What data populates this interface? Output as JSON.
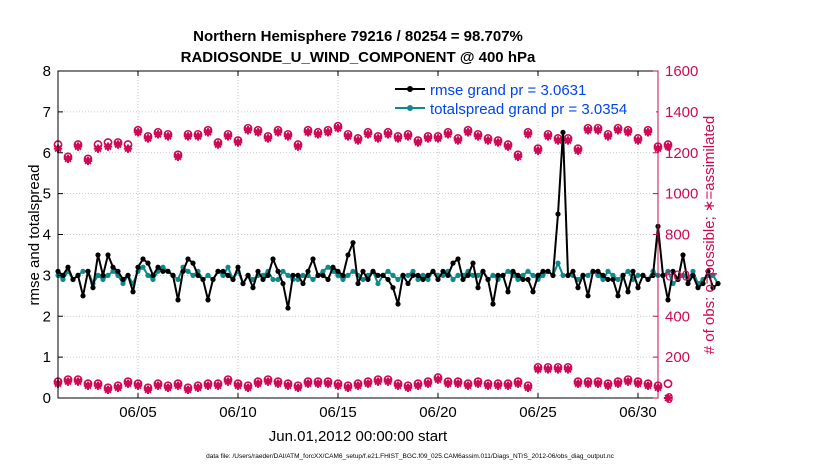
{
  "chart_data": {
    "type": "line",
    "title_line1": "Northern Hemisphere 79216 / 80254 = 98.707%",
    "title_line2": "RADIOSONDE_U_WIND_COMPONENT @ 400 hPa",
    "xlabel": "Jun.01,2012 00:00:00 start",
    "ylabel_left": "rmse and totalspread",
    "ylabel_right": "# of obs: o=possible; ∗=assimilated",
    "footer": "data file: /Users/raeder/DAI/ATM_forcXX/CAM6_setup/f.e21.FHIST_BGC.f09_025.CAM6assim.011/Diags_NTrS_2012-06/obs_diag_output.nc",
    "x_range_days": [
      1.0,
      31.0
    ],
    "x_ticks": [
      {
        "day": 5,
        "label": "06/05"
      },
      {
        "day": 10,
        "label": "06/10"
      },
      {
        "day": 15,
        "label": "06/15"
      },
      {
        "day": 20,
        "label": "06/20"
      },
      {
        "day": 25,
        "label": "06/25"
      },
      {
        "day": 30,
        "label": "06/30"
      }
    ],
    "y_left": {
      "min": 0,
      "max": 8,
      "ticks": [
        "0",
        "1",
        "2",
        "3",
        "4",
        "5",
        "6",
        "7",
        "8"
      ]
    },
    "y_right": {
      "min": 0,
      "max": 1600,
      "ticks": [
        "0",
        "200",
        "400",
        "600",
        "800",
        "1000",
        "1200",
        "1400",
        "1600"
      ]
    },
    "grid": true,
    "legend_position": "top-right",
    "colors": {
      "rmse": "#000000",
      "spread": "#0f8a8a",
      "obs": "#cc0a55",
      "legend_text": "#0044ee"
    },
    "series": [
      {
        "name": "rmse grand pr = 3.0631",
        "axis": "left",
        "start_day": 1.0,
        "step_days": 0.25,
        "values": [
          3.1,
          3.0,
          3.2,
          2.9,
          3.0,
          2.5,
          3.1,
          2.7,
          3.5,
          3.0,
          3.5,
          3.2,
          3.1,
          2.9,
          3.0,
          2.6,
          3.2,
          3.4,
          3.3,
          3.0,
          3.2,
          3.1,
          3.1,
          3.0,
          2.4,
          3.1,
          3.4,
          3.3,
          3.0,
          2.9,
          2.4,
          2.9,
          3.1,
          3.1,
          3.0,
          2.9,
          3.2,
          2.8,
          3.0,
          2.7,
          3.1,
          2.9,
          3.0,
          3.4,
          3.1,
          2.8,
          2.2,
          3.0,
          3.0,
          2.8,
          3.1,
          3.4,
          3.0,
          3.0,
          2.9,
          3.2,
          3.1,
          3.0,
          3.5,
          3.8,
          2.8,
          3.1,
          2.9,
          3.1,
          3.0,
          3.0,
          2.9,
          2.7,
          2.3,
          3.0,
          2.8,
          3.0,
          3.0,
          2.9,
          3.0,
          3.1,
          2.9,
          3.1,
          3.0,
          3.3,
          3.4,
          2.9,
          3.0,
          3.3,
          2.7,
          3.1,
          2.9,
          2.3,
          3.0,
          3.0,
          2.6,
          3.1,
          3.0,
          2.9,
          2.9,
          2.6,
          3.0,
          3.1,
          3.1,
          3.0,
          4.5,
          6.5,
          3.0,
          3.1,
          2.7,
          3.0,
          2.5,
          3.1,
          3.1,
          3.0,
          2.9,
          2.9,
          2.5,
          3.0,
          2.6,
          3.1,
          2.7,
          3.0,
          2.9,
          3.0,
          4.2,
          3.0,
          2.4,
          3.1,
          2.9,
          3.5,
          2.8,
          3.0,
          2.7,
          2.8,
          3.1,
          2.7,
          2.8
        ]
      },
      {
        "name": "totalspread grand pr = 3.0354",
        "axis": "left",
        "start_day": 1.0,
        "step_days": 0.25,
        "values": [
          3.0,
          2.9,
          3.1,
          2.9,
          3.0,
          3.1,
          3.1,
          2.8,
          3.0,
          2.9,
          3.0,
          3.1,
          3.0,
          2.8,
          3.0,
          2.8,
          3.1,
          3.2,
          3.0,
          2.9,
          3.1,
          3.2,
          3.1,
          3.0,
          2.9,
          3.2,
          3.1,
          3.0,
          3.1,
          2.9,
          3.0,
          2.9,
          3.1,
          3.0,
          3.2,
          2.9,
          3.1,
          2.8,
          3.0,
          2.9,
          3.0,
          3.0,
          3.1,
          2.9,
          2.9,
          3.1,
          3.0,
          2.9,
          2.9,
          3.0,
          3.0,
          2.9,
          3.0,
          3.1,
          3.2,
          3.1,
          3.0,
          2.9,
          3.0,
          3.1,
          3.0,
          2.9,
          3.0,
          3.1,
          2.8,
          3.0,
          3.1,
          3.0,
          2.9,
          3.0,
          3.0,
          3.1,
          2.9,
          3.0,
          2.9,
          3.1,
          3.0,
          3.0,
          3.1,
          2.9,
          3.0,
          3.0,
          3.1,
          3.0,
          3.0,
          3.1,
          2.9,
          3.0,
          2.9,
          3.0,
          3.1,
          3.0,
          2.9,
          3.0,
          3.1,
          3.0,
          2.9,
          3.0,
          3.1,
          3.0,
          3.3,
          3.0,
          3.0,
          3.0,
          2.9,
          3.0,
          3.0,
          3.1,
          3.0,
          2.9,
          3.1,
          3.0,
          2.9,
          3.0,
          3.1,
          2.9,
          3.0,
          3.0,
          2.9,
          3.1,
          3.0,
          3.0,
          3.1,
          2.8,
          2.9,
          3.0,
          2.9,
          3.1,
          2.8,
          2.9,
          3.0,
          3.0,
          2.8
        ]
      },
      {
        "name": "# of obs possible",
        "axis": "right",
        "marker": "o",
        "start_day": 1.0,
        "step_days": 0.5,
        "values": [
          1240,
          1180,
          1240,
          1170,
          1240,
          1250,
          1250,
          1240,
          1310,
          1280,
          1300,
          1290,
          1190,
          1290,
          1290,
          1310,
          1250,
          1290,
          1260,
          1320,
          1310,
          1280,
          1310,
          1290,
          1240,
          1310,
          1300,
          1310,
          1330,
          1290,
          1270,
          1300,
          1280,
          1300,
          1280,
          1290,
          1260,
          1280,
          1280,
          1300,
          1270,
          1310,
          1290,
          1270,
          1260,
          1240,
          1190,
          1300,
          1220,
          1290,
          1270,
          1270,
          1220,
          1320,
          1320,
          1290,
          1320,
          1310,
          1270,
          1310,
          1230,
          1240
        ],
        "low_values": [
          80,
          90,
          90,
          70,
          70,
          50,
          60,
          80,
          70,
          50,
          70,
          60,
          70,
          50,
          60,
          70,
          70,
          90,
          70,
          60,
          80,
          90,
          80,
          70,
          60,
          80,
          80,
          80,
          70,
          60,
          70,
          80,
          90,
          90,
          70,
          60,
          70,
          80,
          100,
          80,
          80,
          70,
          80,
          70,
          70,
          70,
          80,
          60,
          150,
          150,
          150,
          150,
          80,
          80,
          80,
          70,
          80,
          90,
          80,
          70,
          60,
          70
        ],
        "low_start_day": 1.0
      },
      {
        "name": "# of obs assimilated",
        "axis": "right",
        "marker": "*",
        "start_day": 1.0,
        "step_days": 0.5,
        "values": [
          1220,
          1170,
          1230,
          1160,
          1220,
          1230,
          1240,
          1220,
          1300,
          1270,
          1290,
          1280,
          1180,
          1280,
          1280,
          1300,
          1240,
          1280,
          1250,
          1310,
          1300,
          1270,
          1300,
          1280,
          1230,
          1300,
          1290,
          1300,
          1320,
          1280,
          1260,
          1290,
          1270,
          1290,
          1270,
          1280,
          1250,
          1270,
          1270,
          1290,
          1260,
          1300,
          1280,
          1260,
          1250,
          1230,
          1180,
          1290,
          1210,
          1280,
          1260,
          1260,
          1210,
          1310,
          1310,
          1280,
          1310,
          1300,
          1260,
          1300,
          1220,
          1230
        ],
        "low_values": [
          70,
          80,
          80,
          60,
          60,
          40,
          50,
          70,
          60,
          40,
          60,
          50,
          60,
          40,
          50,
          60,
          60,
          80,
          60,
          50,
          70,
          80,
          70,
          60,
          50,
          70,
          70,
          70,
          60,
          50,
          60,
          70,
          80,
          80,
          60,
          50,
          60,
          70,
          90,
          70,
          70,
          60,
          70,
          60,
          60,
          60,
          70,
          50,
          140,
          140,
          140,
          140,
          70,
          70,
          70,
          60,
          70,
          80,
          70,
          60,
          50,
          0
        ]
      }
    ]
  }
}
